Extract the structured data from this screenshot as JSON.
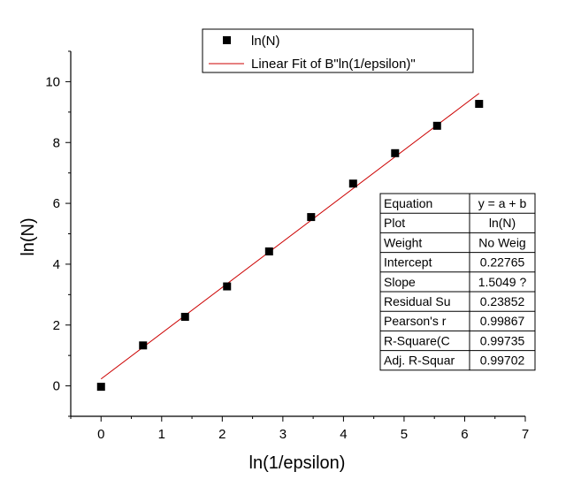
{
  "chart_data": {
    "type": "scatter",
    "xlabel": "ln(1/epsilon)",
    "ylabel": "ln(N)",
    "xlim": [
      -0.5,
      7
    ],
    "ylim": [
      -1,
      11
    ],
    "xticks": [
      0,
      1,
      2,
      3,
      4,
      5,
      6,
      7
    ],
    "yticks": [
      0,
      2,
      4,
      6,
      8,
      10
    ],
    "grid": false,
    "legend_position": "top-center",
    "colors": {
      "points": "#000000",
      "fit": "#cc0000"
    },
    "series": [
      {
        "name": "ln(N)",
        "marker": "square",
        "x": [
          0,
          0.693,
          1.386,
          2.079,
          2.773,
          3.466,
          4.159,
          4.852,
          5.545,
          6.238
        ],
        "y": [
          -0.03,
          1.33,
          2.27,
          3.27,
          4.42,
          5.55,
          6.65,
          7.65,
          8.55,
          9.27
        ]
      },
      {
        "name": "Linear Fit of B\"ln(1/epsilon)\"",
        "kind": "fit-line",
        "intercept": 0.22765,
        "slope": 1.5049,
        "x_range": [
          0,
          6.238
        ]
      }
    ],
    "stats_table": [
      [
        "Equation",
        "y = a + b"
      ],
      [
        "Plot",
        "ln(N)"
      ],
      [
        "Weight",
        "No Weig"
      ],
      [
        "Intercept",
        "0.22765"
      ],
      [
        "Slope",
        "1.5049 ?"
      ],
      [
        "Residual Su",
        "0.23852"
      ],
      [
        "Pearson's r",
        "0.99867"
      ],
      [
        "R-Square(C",
        "0.99735"
      ],
      [
        "Adj. R-Squar",
        "0.99702"
      ]
    ]
  }
}
